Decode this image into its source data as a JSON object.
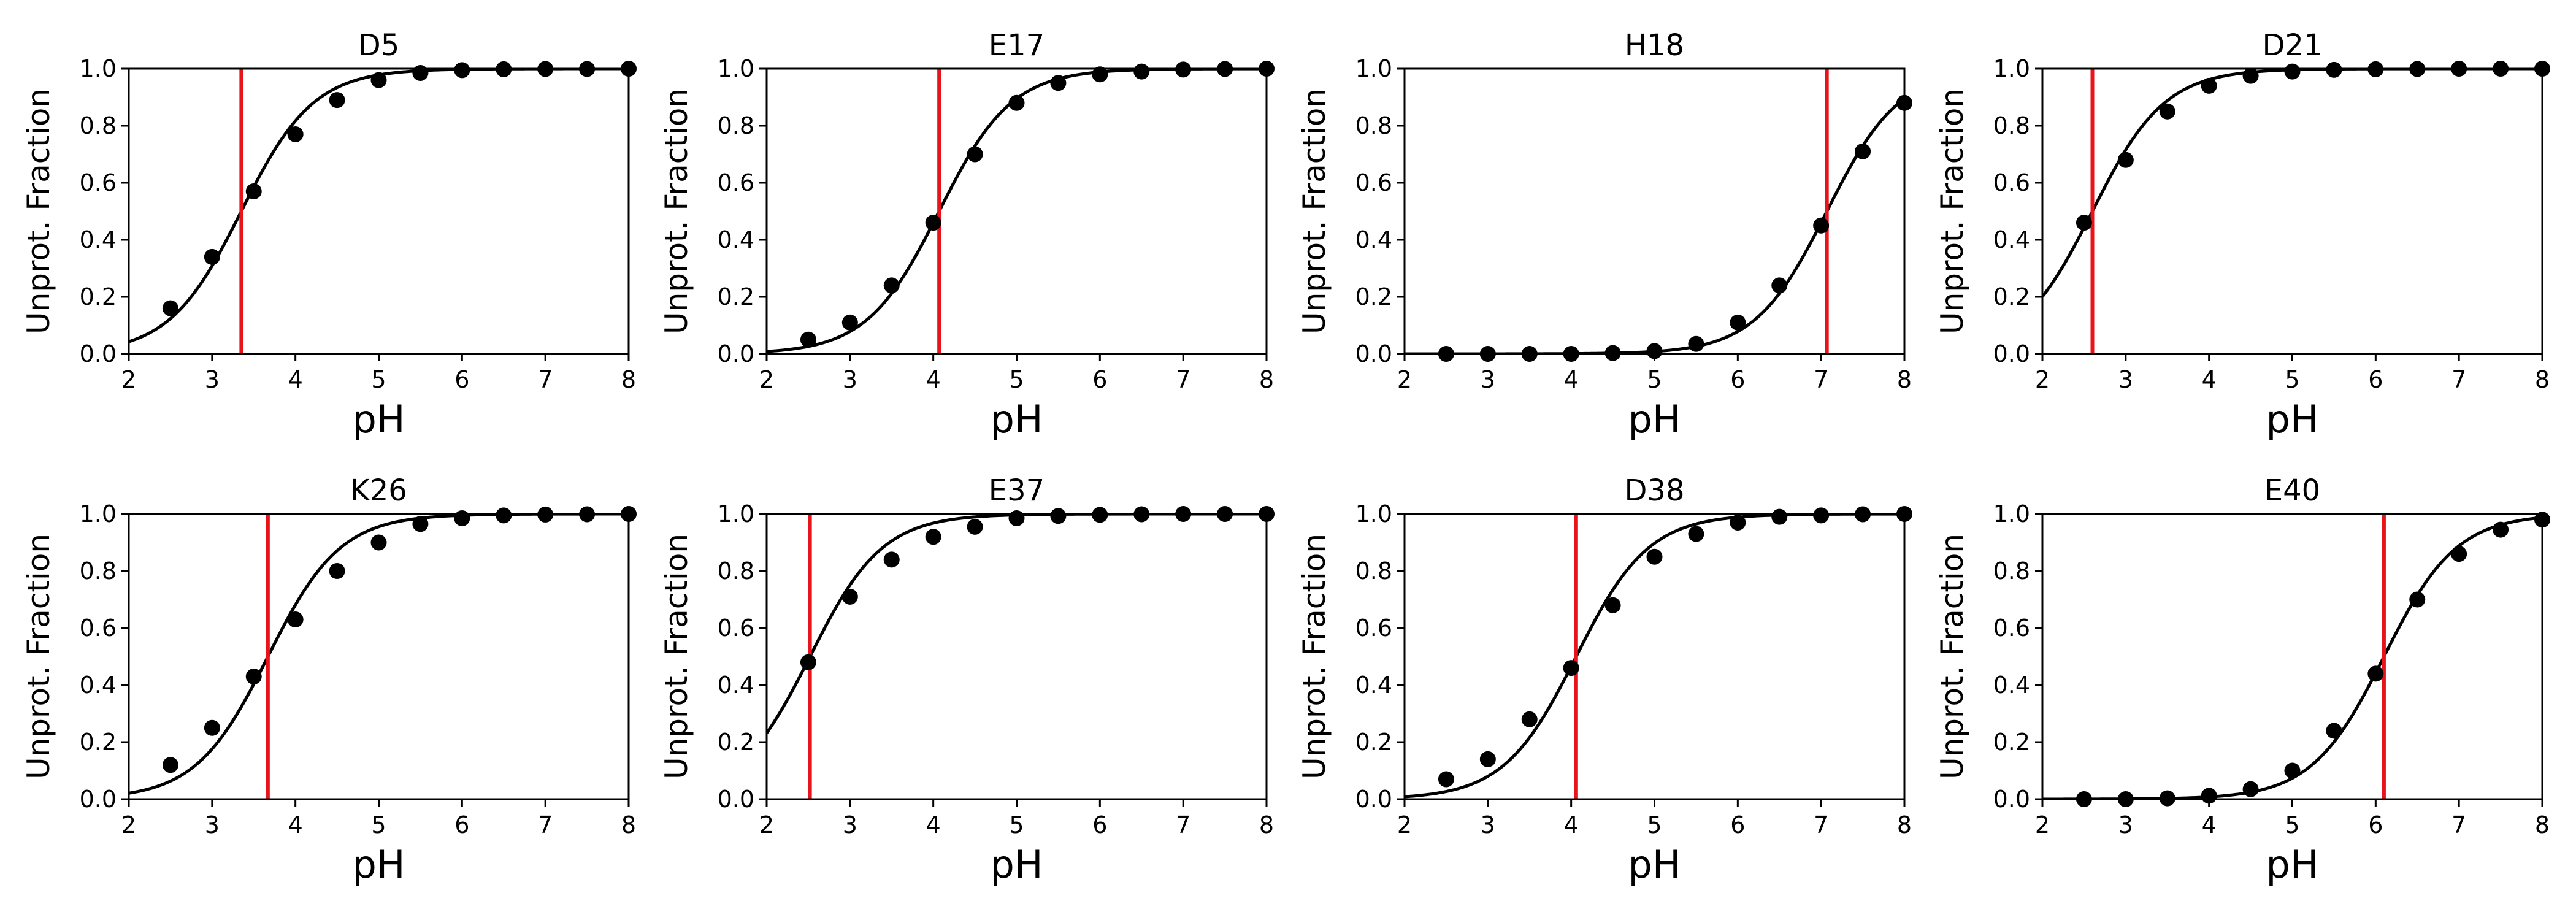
{
  "chart_data": [
    {
      "type": "line",
      "title": "D5",
      "xlabel": "pH",
      "ylabel": "Unprot. Fraction",
      "xlim": [
        2,
        8
      ],
      "ylim": [
        0,
        1
      ],
      "xticks": [
        "2",
        "3",
        "4",
        "5",
        "6",
        "7",
        "8"
      ],
      "yticks": [
        "0.0",
        "0.2",
        "0.4",
        "0.6",
        "0.8",
        "1.0"
      ],
      "pKa": 3.35,
      "points": {
        "x": [
          2.5,
          3.0,
          3.5,
          4.0,
          4.5,
          5.0,
          5.5,
          6.0,
          6.5,
          7.0,
          7.5,
          8.0
        ],
        "y": [
          0.16,
          0.34,
          0.57,
          0.77,
          0.89,
          0.96,
          0.985,
          0.995,
          0.998,
          0.999,
          0.999,
          1.0
        ]
      },
      "fit_line_color": "#000000",
      "pKa_line_color": "#e8141c",
      "grid": false
    },
    {
      "type": "line",
      "title": "E17",
      "xlabel": "pH",
      "ylabel": "Unprot. Fraction",
      "xlim": [
        2,
        8
      ],
      "ylim": [
        0,
        1
      ],
      "xticks": [
        "2",
        "3",
        "4",
        "5",
        "6",
        "7",
        "8"
      ],
      "yticks": [
        "0.0",
        "0.2",
        "0.4",
        "0.6",
        "0.8",
        "1.0"
      ],
      "pKa": 4.07,
      "points": {
        "x": [
          2.5,
          3.0,
          3.5,
          4.0,
          4.5,
          5.0,
          5.5,
          6.0,
          6.5,
          7.0,
          7.5,
          8.0
        ],
        "y": [
          0.05,
          0.11,
          0.24,
          0.46,
          0.7,
          0.88,
          0.95,
          0.98,
          0.99,
          0.997,
          0.999,
          1.0
        ]
      },
      "fit_line_color": "#000000",
      "pKa_line_color": "#e8141c",
      "grid": false
    },
    {
      "type": "line",
      "title": "H18",
      "xlabel": "pH",
      "ylabel": "Unprot. Fraction",
      "xlim": [
        2,
        8
      ],
      "ylim": [
        0,
        1
      ],
      "xticks": [
        "2",
        "3",
        "4",
        "5",
        "6",
        "7",
        "8"
      ],
      "yticks": [
        "0.0",
        "0.2",
        "0.4",
        "0.6",
        "0.8",
        "1.0"
      ],
      "pKa": 7.07,
      "points": {
        "x": [
          2.5,
          3.0,
          3.5,
          4.0,
          4.5,
          5.0,
          5.5,
          6.0,
          6.5,
          7.0,
          7.5,
          8.0
        ],
        "y": [
          0.0,
          0.0,
          0.0,
          0.0,
          0.003,
          0.01,
          0.035,
          0.11,
          0.24,
          0.45,
          0.71,
          0.88
        ]
      },
      "fit_line_color": "#000000",
      "pKa_line_color": "#e8141c",
      "grid": false
    },
    {
      "type": "line",
      "title": "D21",
      "xlabel": "pH",
      "ylabel": "Unprot. Fraction",
      "xlim": [
        2,
        8
      ],
      "ylim": [
        0,
        1
      ],
      "xticks": [
        "2",
        "3",
        "4",
        "5",
        "6",
        "7",
        "8"
      ],
      "yticks": [
        "0.0",
        "0.2",
        "0.4",
        "0.6",
        "0.8",
        "1.0"
      ],
      "pKa": 2.6,
      "points": {
        "x": [
          2.5,
          3.0,
          3.5,
          4.0,
          4.5,
          5.0,
          5.5,
          6.0,
          6.5,
          7.0,
          7.5,
          8.0
        ],
        "y": [
          0.46,
          0.68,
          0.85,
          0.94,
          0.975,
          0.99,
          0.996,
          0.998,
          0.999,
          1.0,
          1.0,
          1.0
        ]
      },
      "fit_line_color": "#000000",
      "pKa_line_color": "#e8141c",
      "grid": false
    },
    {
      "type": "line",
      "title": "K26",
      "xlabel": "pH",
      "ylabel": "Unprot. Fraction",
      "xlim": [
        2,
        8
      ],
      "ylim": [
        0,
        1
      ],
      "xticks": [
        "2",
        "3",
        "4",
        "5",
        "6",
        "7",
        "8"
      ],
      "yticks": [
        "0.0",
        "0.2",
        "0.4",
        "0.6",
        "0.8",
        "1.0"
      ],
      "pKa": 3.67,
      "points": {
        "x": [
          2.5,
          3.0,
          3.5,
          4.0,
          4.5,
          5.0,
          5.5,
          6.0,
          6.5,
          7.0,
          7.5,
          8.0
        ],
        "y": [
          0.12,
          0.25,
          0.43,
          0.63,
          0.8,
          0.9,
          0.965,
          0.985,
          0.995,
          0.998,
          0.999,
          1.0
        ]
      },
      "fit_line_color": "#000000",
      "pKa_line_color": "#e8141c",
      "grid": false
    },
    {
      "type": "line",
      "title": "E37",
      "xlabel": "pH",
      "ylabel": "Unprot. Fraction",
      "xlim": [
        2,
        8
      ],
      "ylim": [
        0,
        1
      ],
      "xticks": [
        "2",
        "3",
        "4",
        "5",
        "6",
        "7",
        "8"
      ],
      "yticks": [
        "0.0",
        "0.2",
        "0.4",
        "0.6",
        "0.8",
        "1.0"
      ],
      "pKa": 2.52,
      "points": {
        "x": [
          2.5,
          3.0,
          3.5,
          4.0,
          4.5,
          5.0,
          5.5,
          6.0,
          6.5,
          7.0,
          7.5,
          8.0
        ],
        "y": [
          0.48,
          0.71,
          0.84,
          0.92,
          0.955,
          0.985,
          0.993,
          0.997,
          0.999,
          1.0,
          1.0,
          1.0
        ]
      },
      "fit_line_color": "#000000",
      "pKa_line_color": "#e8141c",
      "grid": false
    },
    {
      "type": "line",
      "title": "D38",
      "xlabel": "pH",
      "ylabel": "Unprot. Fraction",
      "xlim": [
        2,
        8
      ],
      "ylim": [
        0,
        1
      ],
      "xticks": [
        "2",
        "3",
        "4",
        "5",
        "6",
        "7",
        "8"
      ],
      "yticks": [
        "0.0",
        "0.2",
        "0.4",
        "0.6",
        "0.8",
        "1.0"
      ],
      "pKa": 4.06,
      "points": {
        "x": [
          2.5,
          3.0,
          3.5,
          4.0,
          4.5,
          5.0,
          5.5,
          6.0,
          6.5,
          7.0,
          7.5,
          8.0
        ],
        "y": [
          0.07,
          0.14,
          0.28,
          0.46,
          0.68,
          0.85,
          0.93,
          0.97,
          0.99,
          0.995,
          0.999,
          1.0
        ]
      },
      "fit_line_color": "#000000",
      "pKa_line_color": "#e8141c",
      "grid": false
    },
    {
      "type": "line",
      "title": "E40",
      "xlabel": "pH",
      "ylabel": "Unprot. Fraction",
      "xlim": [
        2,
        8
      ],
      "ylim": [
        0,
        1
      ],
      "xticks": [
        "2",
        "3",
        "4",
        "5",
        "6",
        "7",
        "8"
      ],
      "yticks": [
        "0.0",
        "0.2",
        "0.4",
        "0.6",
        "0.8",
        "1.0"
      ],
      "pKa": 6.1,
      "points": {
        "x": [
          2.5,
          3.0,
          3.5,
          4.0,
          4.5,
          5.0,
          5.5,
          6.0,
          6.5,
          7.0,
          7.5,
          8.0
        ],
        "y": [
          0.0,
          0.0,
          0.003,
          0.012,
          0.035,
          0.1,
          0.24,
          0.44,
          0.7,
          0.86,
          0.945,
          0.98
        ]
      },
      "fit_line_color": "#000000",
      "pKa_line_color": "#e8141c",
      "grid": false
    }
  ]
}
